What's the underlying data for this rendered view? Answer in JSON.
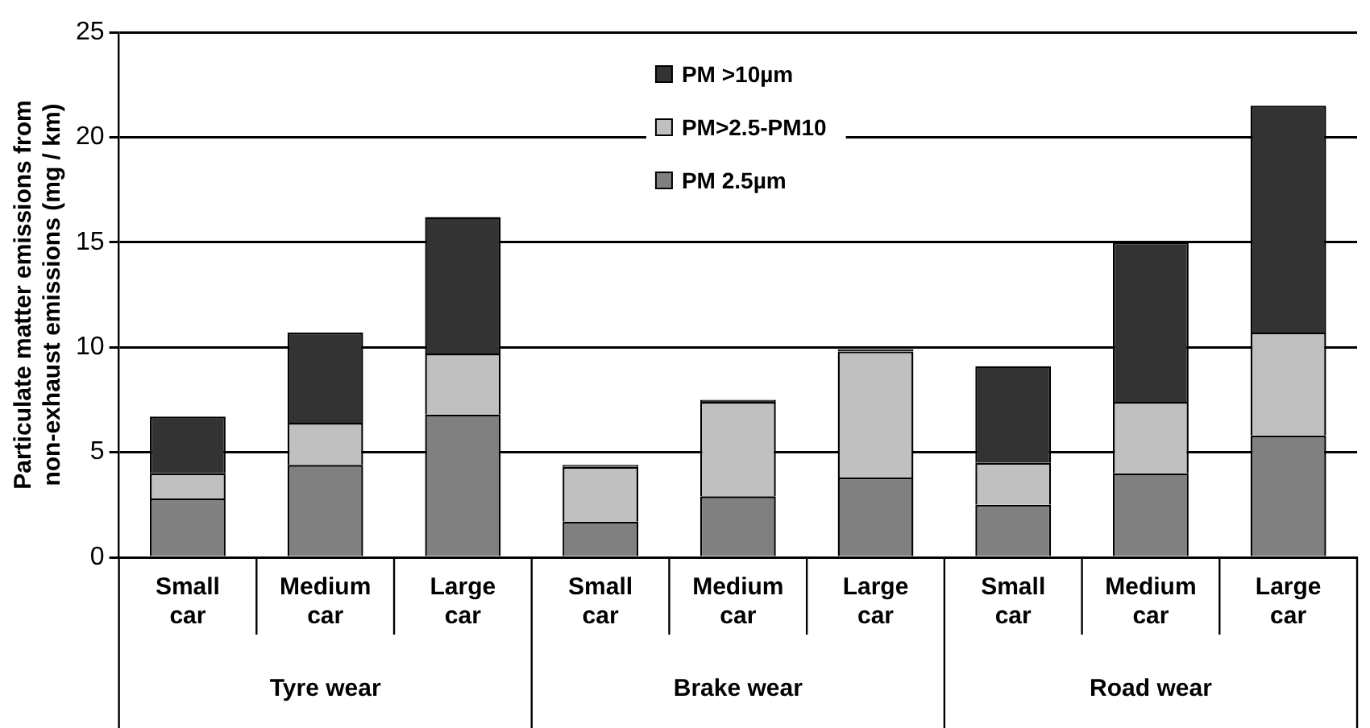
{
  "chart_data": {
    "type": "bar",
    "stacked": true,
    "ylabel": "Particulate matter emissions from non-exhaust emissions (mg / km)",
    "categories": [
      "Small car",
      "Medium car",
      "Large car",
      "Small car",
      "Medium car",
      "Large car",
      "Small car",
      "Medium car",
      "Large car"
    ],
    "annotations": [
      "Tyre wear",
      "Brake wear",
      "Road wear"
    ],
    "series": [
      {
        "name": "PM 2.5µm",
        "color": "#808080",
        "values": [
          2.8,
          4.4,
          6.8,
          1.7,
          2.9,
          3.8,
          2.5,
          4.0,
          5.8
        ]
      },
      {
        "name": "PM>2.5-PM10",
        "color": "#c0c0c0",
        "values": [
          1.2,
          2.0,
          2.9,
          2.6,
          4.5,
          6.0,
          2.0,
          3.4,
          4.9
        ]
      },
      {
        "name": "PM >10µm",
        "color": "#333333",
        "values": [
          2.7,
          4.3,
          6.5,
          0.1,
          0.1,
          0.1,
          4.6,
          7.6,
          10.8
        ]
      }
    ],
    "ylim": [
      0,
      25
    ],
    "yticks": [
      0,
      5,
      10,
      15,
      20,
      25
    ],
    "grid": "y",
    "legend": "top"
  }
}
